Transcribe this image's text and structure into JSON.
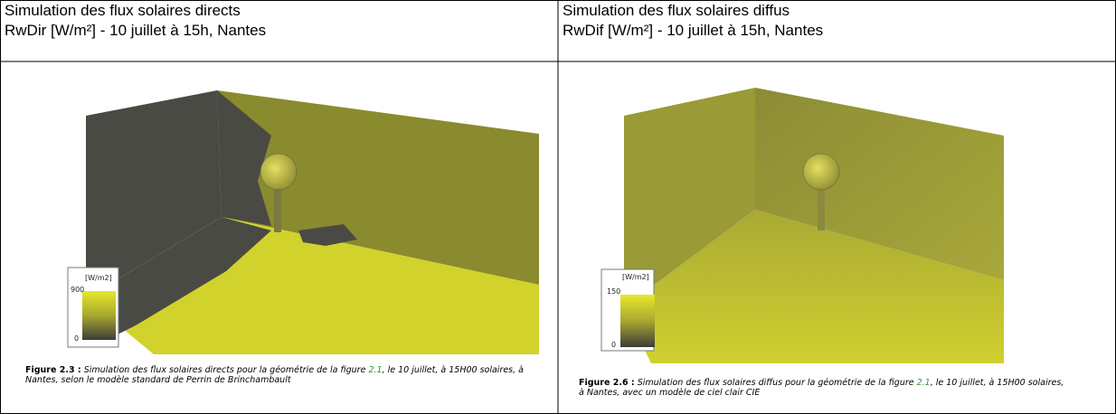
{
  "columns": [
    {
      "title": "Simulation des flux solaires directs",
      "subtitle": "RwDir [W/m²] - 10 juillet à 15h, Nantes",
      "legend": {
        "unit": "[W/m2]",
        "max": "900",
        "min": "0"
      },
      "caption": {
        "label": "Figure 2.3 :",
        "text_before": "Simulation des flux solaires directs pour la géométrie de la figure ",
        "ref": "2.1",
        "text_after": ", le 10 juillet, à 15H00 solaires, à Nantes, selon le modèle standard de Perrin de Brinchambault"
      }
    },
    {
      "title": "Simulation des flux solaires diffus",
      "subtitle": "RwDif [W/m²] - 10 juillet à 15h, Nantes",
      "legend": {
        "unit": "[W/m2]",
        "max": "150",
        "min": "0"
      },
      "caption": {
        "label": "Figure 2.6 :",
        "text_before": "Simulation des flux solaires diffus pour la géométrie de la figure ",
        "ref": "2.1",
        "text_after": ", le 10 juillet, à 15H00 solaires, à Nantes, avec un modèle de ciel clair CIE"
      }
    }
  ]
}
